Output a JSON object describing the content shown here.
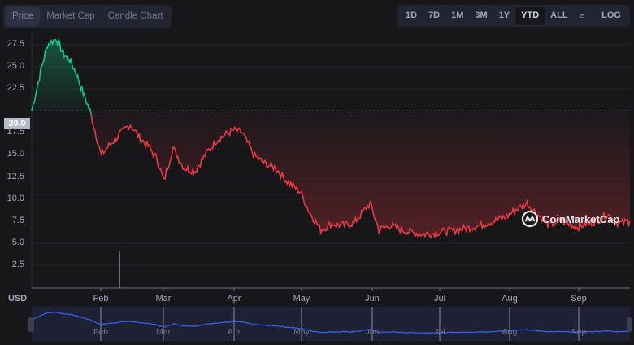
{
  "tabs": [
    {
      "label": "Price",
      "active": true
    },
    {
      "label": "Market Cap",
      "active": false
    },
    {
      "label": "Candle Chart",
      "active": false
    }
  ],
  "ranges": [
    {
      "label": "1D",
      "active": false
    },
    {
      "label": "7D",
      "active": false
    },
    {
      "label": "1M",
      "active": false
    },
    {
      "label": "3M",
      "active": false
    },
    {
      "label": "1Y",
      "active": false
    },
    {
      "label": "YTD",
      "active": true
    },
    {
      "label": "ALL",
      "active": false
    }
  ],
  "calendar_icon": "calendar-icon",
  "log_label": "LOG",
  "currency_label": "USD",
  "current_price_marker": "20.0",
  "watermark": "CoinMarketCap",
  "colors": {
    "up": "#16c784",
    "down": "#ea3943",
    "navigator_line": "#3861fb"
  },
  "chart_data": {
    "type": "line",
    "title": "",
    "xlabel": "",
    "ylabel": "USD",
    "ylim": [
      0,
      30
    ],
    "yticks": [
      "2.5",
      "5.0",
      "7.5",
      "10.0",
      "12.5",
      "15.0",
      "17.5",
      "20.0",
      "22.5",
      "25.0",
      "27.5"
    ],
    "xticks": [
      "Feb",
      "Mar",
      "Apr",
      "May",
      "Jun",
      "Jul",
      "Aug",
      "Sep"
    ],
    "baseline": 20.0,
    "grid": true,
    "legend": "none",
    "series": [
      {
        "name": "Price",
        "x": [
          "Jan 1",
          "Jan 5",
          "Jan 8",
          "Jan 12",
          "Jan 15",
          "Jan 18",
          "Jan 21",
          "Jan 24",
          "Jan 27",
          "Feb 1",
          "Feb 5",
          "Feb 10",
          "Feb 14",
          "Feb 18",
          "Feb 22",
          "Feb 26",
          "Mar 1",
          "Mar 5",
          "Mar 10",
          "Mar 15",
          "Mar 20",
          "Mar 25",
          "Apr 1",
          "Apr 5",
          "Apr 10",
          "Apr 15",
          "Apr 20",
          "Apr 25",
          "May 1",
          "May 5",
          "May 10",
          "May 15",
          "May 20",
          "May 25",
          "Jun 1",
          "Jun 5",
          "Jun 10",
          "Jun 15",
          "Jun 20",
          "Jun 25",
          "Jul 1",
          "Jul 10",
          "Jul 20",
          "Aug 1",
          "Aug 5",
          "Aug 10",
          "Aug 15",
          "Aug 20",
          "Aug 25",
          "Sep 1",
          "Sep 10",
          "Sep 15",
          "Sep 20",
          "Sep 25"
        ],
        "values": [
          20.0,
          24.5,
          27.5,
          28.2,
          26.5,
          25.8,
          24.2,
          22.0,
          20.0,
          15.0,
          16.2,
          17.5,
          18.5,
          17.0,
          16.0,
          14.5,
          12.0,
          15.8,
          13.5,
          13.2,
          15.2,
          16.8,
          17.8,
          17.5,
          15.0,
          14.0,
          13.5,
          12.0,
          10.8,
          8.5,
          6.5,
          7.2,
          7.0,
          7.3,
          9.5,
          6.5,
          7.0,
          6.5,
          6.2,
          6.0,
          6.2,
          6.5,
          7.0,
          8.0,
          8.8,
          9.5,
          8.2,
          7.0,
          7.5,
          6.8,
          7.5,
          8.3,
          7.2,
          7.5
        ]
      }
    ]
  },
  "navigator": {
    "labels": [
      "Feb",
      "Mar",
      "Apr",
      "May",
      "Jun",
      "Jul",
      "Aug",
      "Sep"
    ]
  }
}
